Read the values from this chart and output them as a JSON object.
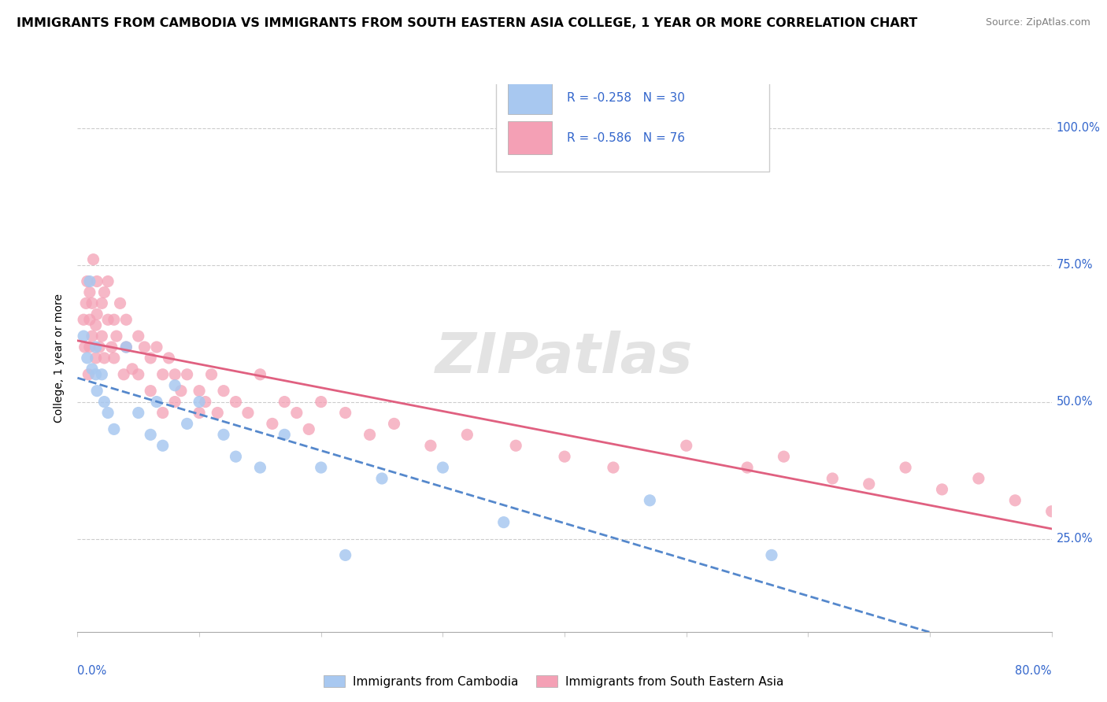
{
  "title": "IMMIGRANTS FROM CAMBODIA VS IMMIGRANTS FROM SOUTH EASTERN ASIA COLLEGE, 1 YEAR OR MORE CORRELATION CHART",
  "source": "Source: ZipAtlas.com",
  "ylabel_label": "College, 1 year or more",
  "series1_label": "Immigrants from Cambodia",
  "series2_label": "Immigrants from South Eastern Asia",
  "color1": "#a8c8f0",
  "color2": "#f4a0b5",
  "line1_color": "#5588cc",
  "line2_color": "#e06080",
  "background_color": "#ffffff",
  "grid_color": "#cccccc",
  "xlim": [
    0.0,
    0.8
  ],
  "ylim": [
    0.08,
    1.08
  ],
  "watermark_text": "ZIPatlas",
  "legend_color": "#3366cc",
  "title_fontsize": 11.5,
  "source_fontsize": 9,
  "cambodia_x": [
    0.005,
    0.008,
    0.01,
    0.012,
    0.015,
    0.015,
    0.016,
    0.02,
    0.022,
    0.025,
    0.03,
    0.04,
    0.05,
    0.06,
    0.065,
    0.07,
    0.08,
    0.09,
    0.1,
    0.12,
    0.13,
    0.15,
    0.17,
    0.2,
    0.22,
    0.25,
    0.3,
    0.35,
    0.47,
    0.57
  ],
  "cambodia_y": [
    0.62,
    0.58,
    0.72,
    0.56,
    0.6,
    0.55,
    0.52,
    0.55,
    0.5,
    0.48,
    0.45,
    0.6,
    0.48,
    0.44,
    0.5,
    0.42,
    0.53,
    0.46,
    0.5,
    0.44,
    0.4,
    0.38,
    0.44,
    0.38,
    0.22,
    0.36,
    0.38,
    0.28,
    0.32,
    0.22
  ],
  "sea_x": [
    0.005,
    0.006,
    0.007,
    0.008,
    0.009,
    0.01,
    0.01,
    0.01,
    0.012,
    0.012,
    0.013,
    0.015,
    0.015,
    0.016,
    0.016,
    0.018,
    0.02,
    0.02,
    0.022,
    0.022,
    0.025,
    0.025,
    0.028,
    0.03,
    0.03,
    0.032,
    0.035,
    0.038,
    0.04,
    0.04,
    0.045,
    0.05,
    0.05,
    0.055,
    0.06,
    0.06,
    0.065,
    0.07,
    0.07,
    0.075,
    0.08,
    0.08,
    0.085,
    0.09,
    0.1,
    0.1,
    0.105,
    0.11,
    0.115,
    0.12,
    0.13,
    0.14,
    0.15,
    0.16,
    0.17,
    0.18,
    0.19,
    0.2,
    0.22,
    0.24,
    0.26,
    0.29,
    0.32,
    0.36,
    0.4,
    0.44,
    0.5,
    0.55,
    0.58,
    0.62,
    0.65,
    0.68,
    0.71,
    0.74,
    0.77,
    0.8
  ],
  "sea_y": [
    0.65,
    0.6,
    0.68,
    0.72,
    0.55,
    0.7,
    0.65,
    0.6,
    0.68,
    0.62,
    0.76,
    0.64,
    0.58,
    0.72,
    0.66,
    0.6,
    0.68,
    0.62,
    0.7,
    0.58,
    0.65,
    0.72,
    0.6,
    0.65,
    0.58,
    0.62,
    0.68,
    0.55,
    0.65,
    0.6,
    0.56,
    0.62,
    0.55,
    0.6,
    0.58,
    0.52,
    0.6,
    0.55,
    0.48,
    0.58,
    0.55,
    0.5,
    0.52,
    0.55,
    0.52,
    0.48,
    0.5,
    0.55,
    0.48,
    0.52,
    0.5,
    0.48,
    0.55,
    0.46,
    0.5,
    0.48,
    0.45,
    0.5,
    0.48,
    0.44,
    0.46,
    0.42,
    0.44,
    0.42,
    0.4,
    0.38,
    0.42,
    0.38,
    0.4,
    0.36,
    0.35,
    0.38,
    0.34,
    0.36,
    0.32,
    0.3
  ]
}
